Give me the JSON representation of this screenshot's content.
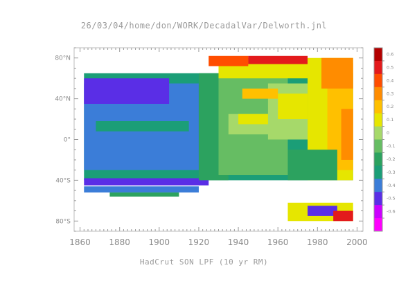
{
  "chart_data": {
    "type": "heatmap",
    "title": "26/03/04/home/don/WORK/DecadalVar/Delworth.jnl",
    "xlabel": "HadCrut SON LPF (10 yr RM)",
    "ylabel": "",
    "x_ticks": [
      1860,
      1880,
      1900,
      1920,
      1940,
      1960,
      1980,
      2000
    ],
    "x_tick_labels": [
      "1860",
      "1880",
      "1900",
      "1920",
      "1940",
      "1960",
      "1980",
      "2000"
    ],
    "xlim": [
      1857,
      2003
    ],
    "y_ticks": [
      80,
      40,
      0,
      -40,
      -80
    ],
    "y_tick_labels": [
      "80°N",
      "40°N",
      "0°",
      "40°S",
      "80°S"
    ],
    "ylim": [
      -90,
      90
    ],
    "colorbar": {
      "levels": [
        0.6,
        0.5,
        0.4,
        0.3,
        0.2,
        0.1,
        0,
        -0.1,
        -0.2,
        -0.3,
        -0.4,
        -0.5,
        -0.6
      ],
      "labels": [
        "0.6",
        "0.5",
        "0.4",
        "0.3",
        "0.2",
        "0.1",
        "0",
        "-0.1",
        "-0.2",
        "-0.3",
        "-0.4",
        "-0.5",
        "-0.6"
      ],
      "colors": [
        "#b30000",
        "#e31a1c",
        "#ff4d00",
        "#ff8c00",
        "#ffc000",
        "#e6e600",
        "#a6d96a",
        "#66bd63",
        "#2ca25f",
        "#1b9e77",
        "#3b7dd8",
        "#5a2ee6",
        "#cc00ff",
        "#ff00ff"
      ],
      "placement": "right"
    },
    "regions": [
      {
        "x0": 1862,
        "x1": 1998,
        "y0": -40,
        "y1": 65,
        "value": -0.3
      },
      {
        "x0": 1862,
        "x1": 1920,
        "y0": -30,
        "y1": 55,
        "value": -0.35
      },
      {
        "x0": 1862,
        "x1": 1905,
        "y0": 35,
        "y1": 60,
        "value": -0.45
      },
      {
        "x0": 1868,
        "x1": 1915,
        "y0": 8,
        "y1": 18,
        "value": -0.3
      },
      {
        "x0": 1862,
        "x1": 1925,
        "y0": -45,
        "y1": -38,
        "value": -0.45
      },
      {
        "x0": 1920,
        "x1": 1935,
        "y0": -40,
        "y1": 65,
        "value": -0.2
      },
      {
        "x0": 1930,
        "x1": 1965,
        "y0": -35,
        "y1": 72,
        "value": -0.1
      },
      {
        "x0": 1935,
        "x1": 1960,
        "y0": 5,
        "y1": 25,
        "value": 0.05
      },
      {
        "x0": 1940,
        "x1": 1958,
        "y0": 15,
        "y1": 25,
        "value": 0.1
      },
      {
        "x0": 1955,
        "x1": 1975,
        "y0": 0,
        "y1": 55,
        "value": 0.05
      },
      {
        "x0": 1960,
        "x1": 1975,
        "y0": 20,
        "y1": 45,
        "value": 0.1
      },
      {
        "x0": 1942,
        "x1": 1960,
        "y0": 40,
        "y1": 50,
        "value": 0.2
      },
      {
        "x0": 1930,
        "x1": 1975,
        "y0": 60,
        "y1": 80,
        "value": 0.1
      },
      {
        "x0": 1925,
        "x1": 1945,
        "y0": 72,
        "y1": 82,
        "value": 0.4
      },
      {
        "x0": 1945,
        "x1": 1975,
        "y0": 74,
        "y1": 82,
        "value": 0.55
      },
      {
        "x0": 1975,
        "x1": 1998,
        "y0": -40,
        "y1": 80,
        "value": 0.1
      },
      {
        "x0": 1985,
        "x1": 1998,
        "y0": -30,
        "y1": 75,
        "value": 0.2
      },
      {
        "x0": 1992,
        "x1": 1998,
        "y0": -20,
        "y1": 30,
        "value": 0.3
      },
      {
        "x0": 1982,
        "x1": 1998,
        "y0": 50,
        "y1": 80,
        "value": 0.3
      },
      {
        "x0": 1965,
        "x1": 1990,
        "y0": -40,
        "y1": -10,
        "value": -0.2
      },
      {
        "x0": 1862,
        "x1": 1920,
        "y0": -52,
        "y1": -46,
        "value": -0.4
      },
      {
        "x0": 1875,
        "x1": 1910,
        "y0": -56,
        "y1": -52,
        "value": -0.15
      },
      {
        "x0": 1965,
        "x1": 1998,
        "y0": -80,
        "y1": -62,
        "value": 0.1
      },
      {
        "x0": 1975,
        "x1": 1990,
        "y0": -75,
        "y1": -65,
        "value": -0.45
      },
      {
        "x0": 1988,
        "x1": 1998,
        "y0": -80,
        "y1": -70,
        "value": 0.5
      }
    ]
  }
}
